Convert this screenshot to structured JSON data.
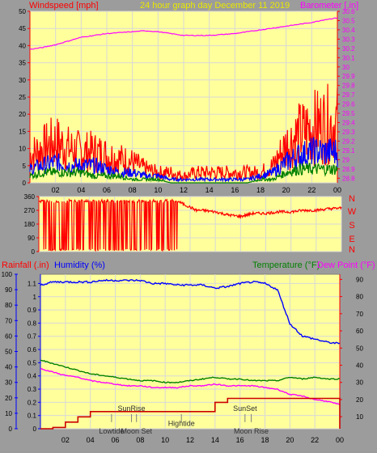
{
  "title": "24 hour graph day   December 11 2019",
  "colors": {
    "background": "#9c9c9c",
    "plot_bg": "#ffff9c",
    "grid": "#d8d8d8",
    "axis_text": "#000000",
    "tick_red": "#ff0000",
    "title": "#e8e800"
  },
  "time_ticks": [
    "02",
    "04",
    "06",
    "08",
    "10",
    "12",
    "14",
    "16",
    "18",
    "20",
    "22",
    "00"
  ],
  "chart_data": [
    {
      "name": "wind-baro",
      "type": "line",
      "left_label": "Windspeed [mph]",
      "right_label": "Barometer [.in]",
      "left_ticks": [
        "0",
        "5",
        "10",
        "15",
        "20",
        "25",
        "30",
        "35",
        "40",
        "45",
        "50"
      ],
      "right_ticks": [
        "28.8",
        "28.9",
        "29",
        "29.1",
        "29.2",
        "29.3",
        "29.4",
        "29.5",
        "29.6",
        "29.7",
        "29.8",
        "29.9",
        "30",
        "30.1",
        "30.2",
        "30.3",
        "30.4",
        "30.5",
        "30.6"
      ],
      "ylim_left": [
        0,
        50
      ],
      "ylim_right": [
        28.75,
        30.6
      ],
      "grid": true,
      "x": [
        0,
        1,
        2,
        3,
        4,
        5,
        6,
        7,
        8,
        9,
        10,
        11,
        12,
        13,
        14,
        15,
        16,
        17,
        18,
        19,
        20,
        21,
        22,
        23,
        24
      ],
      "series": [
        {
          "name": "Windspeed gust",
          "color": "#ff0000",
          "values": [
            8,
            10,
            12,
            10,
            9,
            9,
            8,
            7,
            6,
            4,
            3,
            3,
            2,
            3,
            3,
            3,
            3,
            3,
            3,
            5,
            11,
            14,
            16,
            17,
            17
          ]
        },
        {
          "name": "Windspeed average",
          "color": "#0000ff",
          "values": [
            4,
            5,
            6,
            5,
            5,
            5,
            4,
            3,
            3,
            2,
            2,
            1,
            1,
            1,
            1,
            1,
            1,
            1,
            2,
            3,
            6,
            8,
            9,
            9,
            9
          ]
        },
        {
          "name": "Windspeed low",
          "color": "#008000",
          "values": [
            2,
            3,
            3,
            3,
            3,
            2,
            2,
            2,
            1,
            1,
            1,
            0,
            0,
            0,
            0,
            0,
            0,
            0,
            1,
            1,
            3,
            4,
            4,
            4,
            4
          ]
        },
        {
          "name": "Barometer",
          "color": "#ff00ff",
          "axis": "right",
          "values": [
            30.19,
            30.21,
            30.24,
            30.28,
            30.32,
            30.34,
            30.36,
            30.37,
            30.38,
            30.39,
            30.38,
            30.36,
            30.34,
            30.34,
            30.34,
            30.35,
            30.36,
            30.38,
            30.4,
            30.42,
            30.44,
            30.46,
            30.48,
            30.51,
            30.53
          ]
        }
      ]
    },
    {
      "name": "wind-direction",
      "type": "line",
      "left_ticks": [
        "0",
        "90",
        "180",
        "270",
        "360"
      ],
      "right_ticks": [
        "N",
        "W",
        "S",
        "E",
        "N"
      ],
      "ylim": [
        0,
        360
      ],
      "grid": true,
      "x": [
        0,
        1,
        2,
        3,
        4,
        5,
        6,
        7,
        8,
        9,
        10,
        11,
        12,
        12.5,
        13,
        14,
        15,
        16,
        17,
        18,
        19,
        20,
        21,
        22,
        23,
        24
      ],
      "series": [
        {
          "name": "Wind direction",
          "color": "#ff0000",
          "values": [
            300,
            320,
            330,
            320,
            330,
            330,
            330,
            330,
            330,
            330,
            330,
            330,
            290,
            270,
            270,
            260,
            240,
            230,
            250,
            250,
            260,
            260,
            270,
            270,
            280,
            285
          ]
        }
      ],
      "wind_swing_end": 11
    },
    {
      "name": "temp-hum-rain",
      "type": "line",
      "top_labels": {
        "rainfall": "Rainfall (.in)",
        "humidity": "Humidity (%)",
        "temperature": "Temperature (°F)",
        "dewpoint": "Dew Point (°F)"
      },
      "humidity_ticks": [
        "0",
        "10",
        "20",
        "30",
        "40",
        "50",
        "60",
        "70",
        "80",
        "90",
        "100"
      ],
      "rain_ticks": [
        "0",
        "0.1",
        "0.2",
        "0.3",
        "0.4",
        "0.5",
        "0.6",
        "0.7",
        "0.8",
        "0.9",
        "1",
        "1.1"
      ],
      "temp_ticks": [
        "10",
        "20",
        "30",
        "40",
        "50",
        "60",
        "70",
        "80",
        "90"
      ],
      "ylim_humidity": [
        0,
        100
      ],
      "ylim_rain": [
        0,
        1.17
      ],
      "ylim_temp": [
        3,
        93
      ],
      "grid": true,
      "x": [
        0,
        1,
        2,
        3,
        4,
        5,
        6,
        7,
        8,
        9,
        10,
        11,
        12,
        13,
        14,
        15,
        16,
        17,
        18,
        19,
        20,
        21,
        22,
        23,
        24
      ],
      "series": [
        {
          "name": "Humidity",
          "color": "#0000ff",
          "axis": "humidity",
          "values": [
            93,
            95,
            95,
            95,
            95,
            96,
            96,
            96,
            96,
            94,
            94,
            93,
            93,
            93,
            91,
            92,
            94,
            95,
            94,
            90,
            68,
            60,
            58,
            56,
            55
          ]
        },
        {
          "name": "Temperature",
          "color": "#008000",
          "axis": "temp",
          "values": [
            43,
            41,
            39,
            37,
            35,
            34,
            33,
            32,
            31,
            31,
            30,
            30,
            31,
            32,
            33,
            32,
            32,
            31,
            31,
            31,
            33,
            32,
            33,
            32,
            32
          ]
        },
        {
          "name": "Dew Point",
          "color": "#ff00ff",
          "axis": "temp",
          "values": [
            38,
            36,
            34,
            33,
            31,
            30,
            29,
            28,
            28,
            27,
            27,
            27,
            28,
            28,
            29,
            28,
            28,
            28,
            27,
            26,
            23,
            22,
            20,
            19,
            17
          ]
        },
        {
          "name": "Rainfall",
          "color": "#cc0000",
          "axis": "rain",
          "values": [
            0,
            0.01,
            0.05,
            0.09,
            0.13,
            0.13,
            0.13,
            0.13,
            0.13,
            0.13,
            0.13,
            0.13,
            0.13,
            0.13,
            0.2,
            0.23,
            0.23,
            0.23,
            0.23,
            0.23,
            0.23,
            0.23,
            0.23,
            0.23,
            0.23
          ]
        }
      ],
      "events": [
        {
          "label": "Lowtide",
          "time": 5.7,
          "y_label": -0.04,
          "y_marker": 0.05,
          "label_above": false
        },
        {
          "label": "SunRise",
          "time": 7.3,
          "y_label": 0.135,
          "y_marker": 0.05,
          "label_above": true
        },
        {
          "label": "Moon Set",
          "time": 7.7,
          "y_label": -0.12,
          "y_marker": 0.05,
          "label_above": false
        },
        {
          "label": "Hightide",
          "time": 11.3,
          "y_label": 0.02,
          "y_marker": 0.05,
          "label_above": false
        },
        {
          "label": "SunSet",
          "time": 16.4,
          "y_label": 0.135,
          "y_marker": 0.05,
          "label_above": true
        },
        {
          "label": "Moon Rise",
          "time": 16.9,
          "y_label": -0.05,
          "y_marker": 0.05,
          "label_above": false
        }
      ]
    }
  ]
}
